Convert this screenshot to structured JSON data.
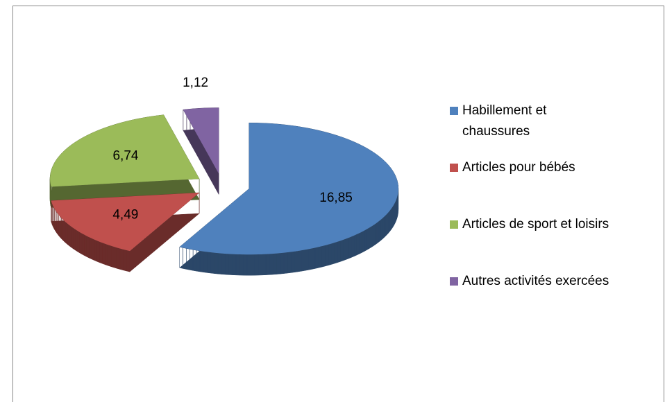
{
  "chart_data": {
    "type": "pie",
    "categories": [
      "Habillement et chaussures",
      "Articles pour bébés",
      "Articles de sport et loisirs",
      "Autres activités exercées"
    ],
    "values": [
      16.85,
      4.49,
      6.74,
      1.12
    ],
    "value_labels": [
      "16,85",
      "4,49",
      "6,74",
      "1,12"
    ],
    "colors": [
      "#4f81bd",
      "#c0504d",
      "#9bbb59",
      "#8064a2"
    ],
    "legend": "right"
  }
}
